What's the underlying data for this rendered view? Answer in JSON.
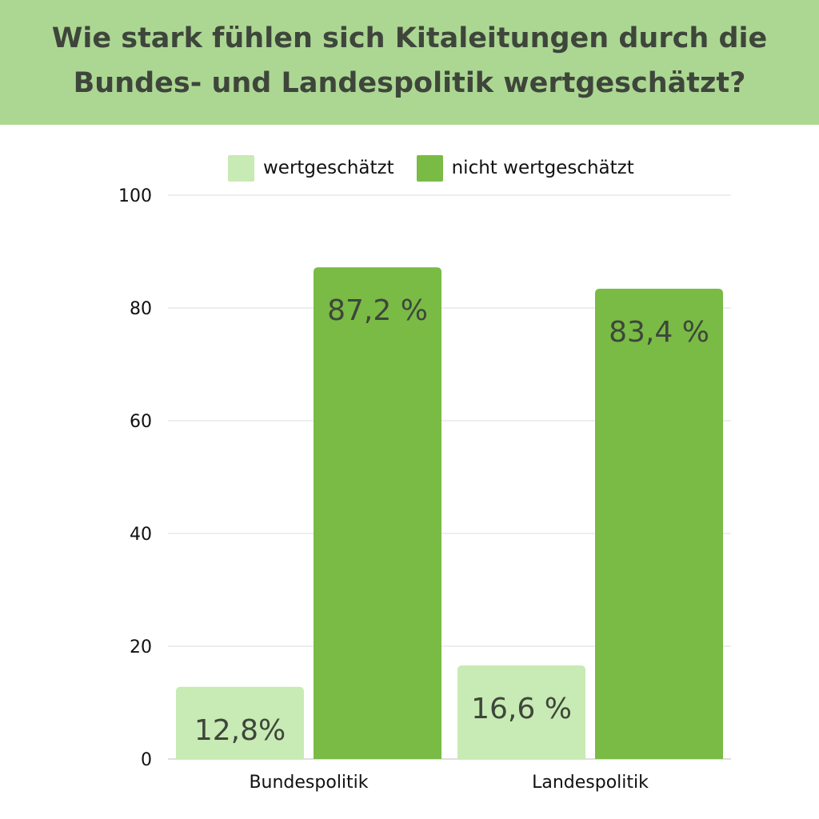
{
  "colors": {
    "header_bg": "#acd793",
    "title_text": "#3e463b",
    "series_light": "#c8eab4",
    "series_dark": "#79bb45",
    "grid": "#dcdcdc"
  },
  "chart_data": {
    "type": "bar",
    "title": "Wie stark fühlen sich Kitaleitungen durch die Bundes- und Landespolitik wertgeschätzt?",
    "categories": [
      "Bundespolitik",
      "Landespolitik"
    ],
    "series": [
      {
        "name": "wertgeschätzt",
        "values": [
          12.8,
          16.6
        ],
        "labels": [
          "12,8%",
          "16,6 %"
        ],
        "color": "#c8eab4"
      },
      {
        "name": "nicht wertgeschätzt",
        "values": [
          87.2,
          83.4
        ],
        "labels": [
          "87,2 %",
          "83,4 %"
        ],
        "color": "#79bb45"
      }
    ],
    "ylim": [
      0,
      100
    ],
    "yticks": [
      0,
      20,
      40,
      60,
      80,
      100
    ],
    "ytick_labels": [
      "0",
      "20",
      "40",
      "60",
      "80",
      "100"
    ],
    "grid": true,
    "legend_position": "top-center"
  }
}
